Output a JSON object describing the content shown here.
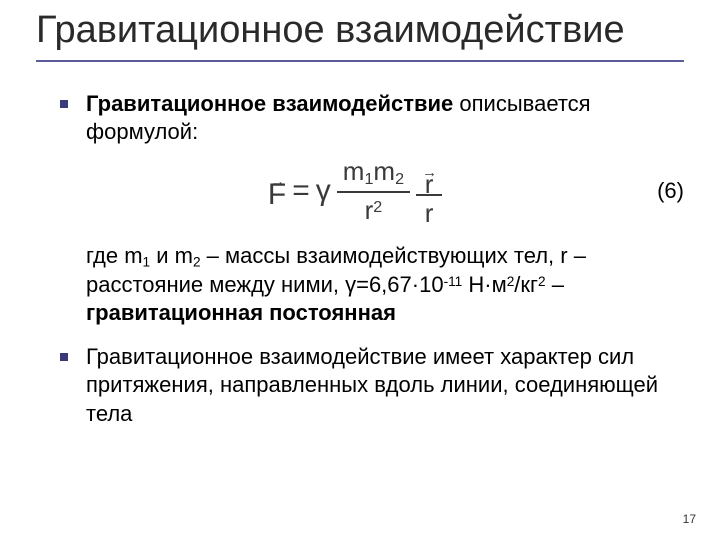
{
  "title": "Гравитационное взаимодействие",
  "bullet_color": "#3a3a7a",
  "rule_color": "#5b5b9b",
  "body_fontsize": 22,
  "title_fontsize": 38,
  "item1": {
    "pre": "Гравитационное взаимодействие",
    "post": " описывается формулой:"
  },
  "eq_number": "(6)",
  "formula": {
    "lhs_var": "F",
    "eq": "=",
    "gamma": "γ",
    "m1": "m",
    "s1": "1",
    "m2": "m",
    "s2": "2",
    "r": "r",
    "sq": "2",
    "rvec": "r"
  },
  "desc": {
    "t1": "где m",
    "s1": "1",
    "t2": " и m",
    "s2": "2",
    "t3": " – массы взаимодействующих тел, r – расстояние между ними, γ=6,67·10",
    "e1": "-11",
    "t4": " Н·м",
    "e2": "2",
    "t5": "/кг",
    "e3": "2",
    "t6": " – ",
    "bold": "гравитационная постоянная"
  },
  "item2": "Гравитационное взаимодействие имеет характер сил притяжения, направленных вдоль линии, соединяющей тела",
  "page": "17"
}
